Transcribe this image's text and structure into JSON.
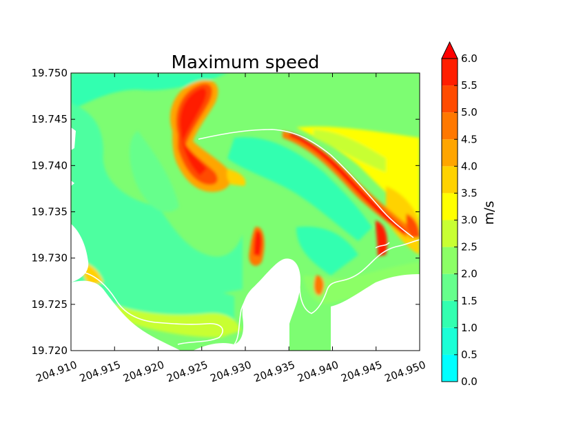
{
  "chart_data": {
    "type": "heatmap",
    "title": "Maximum speed",
    "xlabel": "",
    "ylabel": "",
    "xlim": [
      204.91,
      204.95
    ],
    "ylim": [
      19.72,
      19.75
    ],
    "x_ticks": [
      "204.910",
      "204.915",
      "204.920",
      "204.925",
      "204.930",
      "204.935",
      "204.940",
      "204.945",
      "204.950"
    ],
    "y_ticks": [
      "19.720",
      "19.725",
      "19.730",
      "19.735",
      "19.740",
      "19.745",
      "19.750"
    ],
    "colorbar": {
      "label": "m/s",
      "levels": [
        0.0,
        0.5,
        1.0,
        1.5,
        2.0,
        2.5,
        3.0,
        3.5,
        4.0,
        4.5,
        5.0,
        5.5,
        6.0
      ],
      "tick_labels": [
        "0.0",
        "0.5",
        "1.0",
        "1.5",
        "2.0",
        "2.5",
        "3.0",
        "3.5",
        "4.0",
        "4.5",
        "5.0",
        "5.5",
        "6.0"
      ],
      "colors": [
        "#00ffff",
        "#1affd6",
        "#33ffb0",
        "#66ff8c",
        "#8cff66",
        "#c8ff33",
        "#ffff00",
        "#ffd200",
        "#ffa500",
        "#ff7800",
        "#ff4b00",
        "#ff1e00"
      ],
      "extend": "max",
      "extend_color": "#ff0000"
    }
  }
}
